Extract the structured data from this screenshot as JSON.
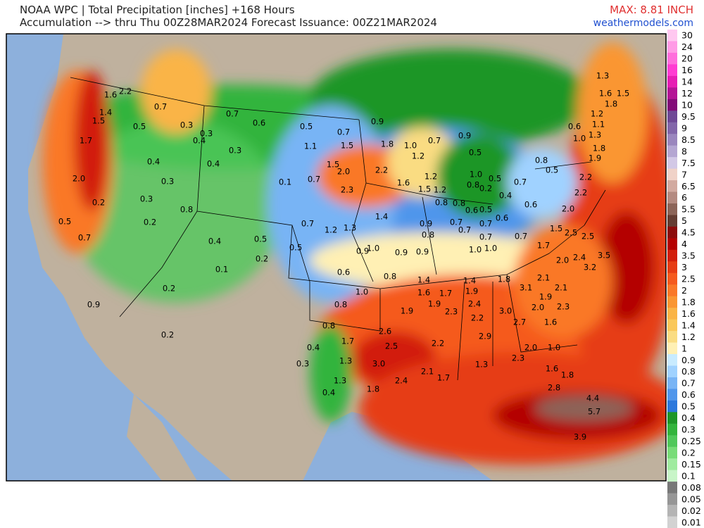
{
  "header": {
    "title_line1": "NOAA WPC | Total Precipitation [inches] +168 Hours",
    "title_line2": "Accumulation --> thru Thu 00Z28MAR2024   Forecast Issuance: 00Z21MAR2024",
    "max": "MAX: 8.81 INCH",
    "site": "weathermodels.com"
  },
  "legend": [
    {
      "label": "30",
      "color": "#ffc8f0"
    },
    {
      "label": "24",
      "color": "#ff9be6"
    },
    {
      "label": "20",
      "color": "#ff6edc"
    },
    {
      "label": "16",
      "color": "#ff3cd2"
    },
    {
      "label": "14",
      "color": "#e61eb4"
    },
    {
      "label": "12",
      "color": "#b41496"
    },
    {
      "label": "10",
      "color": "#820a78"
    },
    {
      "label": "9.5",
      "color": "#6e4896"
    },
    {
      "label": "9",
      "color": "#8266aa"
    },
    {
      "label": "8.5",
      "color": "#9a86be"
    },
    {
      "label": "8",
      "color": "#b4a6d2"
    },
    {
      "label": "7.5",
      "color": "#d2c8e6"
    },
    {
      "label": "7",
      "color": "#f0d2c8"
    },
    {
      "label": "6.5",
      "color": "#d2aaa0"
    },
    {
      "label": "6",
      "color": "#b48a80"
    },
    {
      "label": "5.5",
      "color": "#8c6458"
    },
    {
      "label": "5",
      "color": "#643c32"
    },
    {
      "label": "4.5",
      "color": "#8c0a0a"
    },
    {
      "label": "4",
      "color": "#b40000"
    },
    {
      "label": "3.5",
      "color": "#d21e0a"
    },
    {
      "label": "3",
      "color": "#e63c14"
    },
    {
      "label": "2.5",
      "color": "#f55a1e"
    },
    {
      "label": "2",
      "color": "#fa7828"
    },
    {
      "label": "1.8",
      "color": "#fa9632"
    },
    {
      "label": "1.6",
      "color": "#fab446"
    },
    {
      "label": "1.4",
      "color": "#fac85a"
    },
    {
      "label": "1.2",
      "color": "#fadc82"
    },
    {
      "label": "1",
      "color": "#fff0b4"
    },
    {
      "label": "0.9",
      "color": "#c8ebff"
    },
    {
      "label": "0.8",
      "color": "#a0d2ff"
    },
    {
      "label": "0.7",
      "color": "#78b4f5"
    },
    {
      "label": "0.6",
      "color": "#5096eb"
    },
    {
      "label": "0.5",
      "color": "#2c78dc"
    },
    {
      "label": "0.4",
      "color": "#1e9628"
    },
    {
      "label": "0.3",
      "color": "#32b43c"
    },
    {
      "label": "0.25",
      "color": "#50c85a"
    },
    {
      "label": "0.2",
      "color": "#78dc78"
    },
    {
      "label": "0.15",
      "color": "#a0eba0"
    },
    {
      "label": "0.1",
      "color": "#c8f5c8"
    },
    {
      "label": "0.08",
      "color": "#787878"
    },
    {
      "label": "0.05",
      "color": "#969696"
    },
    {
      "label": "0.02",
      "color": "#b4b4b4"
    },
    {
      "label": "0.01",
      "color": "#d2d2d2"
    }
  ],
  "map_labels": [
    "1.6",
    "2.2",
    "1.4",
    "1.5",
    "0.5",
    "0.7",
    "0.3",
    "0.3",
    "0.4",
    "1.7",
    "0.3",
    "0.4",
    "0.4",
    "2.0",
    "0.3",
    "0.3",
    "0.2",
    "0.8",
    "0.5",
    "0.2",
    "0.7",
    "0.4",
    "0.5",
    "0.2",
    "0.1",
    "0.2",
    "0.9",
    "0.2",
    "0.7",
    "0.6",
    "0.5",
    "0.7",
    "0.9",
    "1.1",
    "1.5",
    "1.8",
    "1.0",
    "0.7",
    "0.9",
    "1.5",
    "2.0",
    "2.2",
    "1.2",
    "0.5",
    "0.1",
    "0.7",
    "2.3",
    "1.6",
    "1.2",
    "1.5",
    "1.2",
    "1.0",
    "0.8",
    "0.2",
    "0.5",
    "0.4",
    "0.7",
    "0.8",
    "0.5",
    "1.4",
    "0.8",
    "0.8",
    "0.6",
    "0.5",
    "0.6",
    "0.7",
    "1.2",
    "1.3",
    "0.9",
    "0.8",
    "0.7",
    "0.7",
    "0.7",
    "0.7",
    "0.7",
    "0.5",
    "0.9",
    "1.0",
    "0.9",
    "0.9",
    "1.0",
    "1.0",
    "0.6",
    "0.8",
    "1.4",
    "1.4",
    "1.8",
    "1.0",
    "1.6",
    "1.7",
    "1.9",
    "0.8",
    "1.9",
    "1.9",
    "2.3",
    "2.4",
    "3.0",
    "0.8",
    "2.2",
    "2.6",
    "2.7",
    "2.9",
    "1.7",
    "2.5",
    "2.2",
    "0.4",
    "1.3",
    "3.0",
    "0.3",
    "2.1",
    "1.7",
    "1.3",
    "1.3",
    "2.4",
    "0.4",
    "1.8",
    "1.3",
    "1.6",
    "1.5",
    "1.8",
    "1.2",
    "1.1",
    "0.6",
    "1.3",
    "1.0",
    "1.8",
    "1.9",
    "2.2",
    "2.2",
    "2.0",
    "0.6",
    "1.5",
    "2.5",
    "2.5",
    "1.7",
    "2.0",
    "2.4",
    "3.5",
    "3.2",
    "2.1",
    "3.1",
    "2.1",
    "1.9",
    "2.0",
    "2.3",
    "1.6",
    "2.0",
    "1.0",
    "2.3",
    "1.6",
    "1.8",
    "2.8",
    "4.4",
    "5.7",
    "3.9"
  ]
}
